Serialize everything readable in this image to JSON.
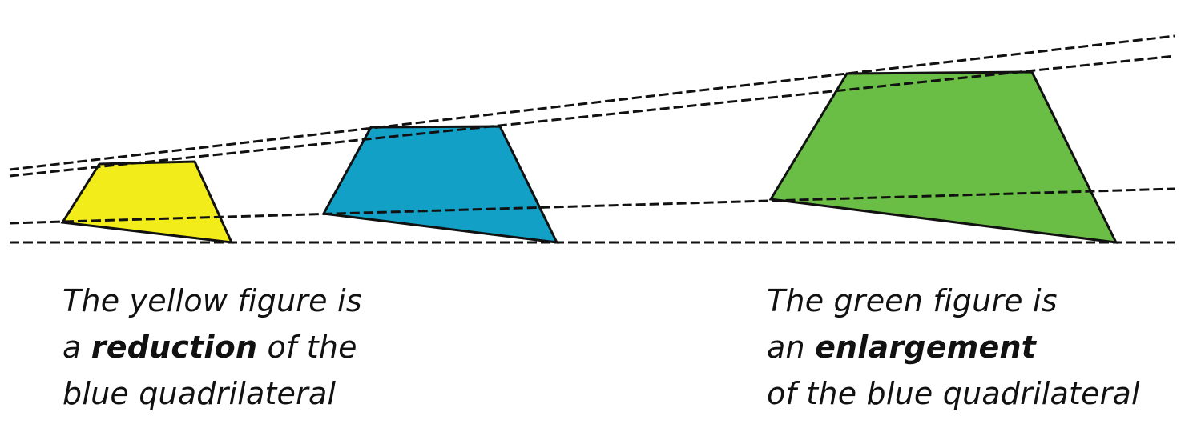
{
  "figures": {
    "yellow": {
      "name": "yellow figure",
      "fill": "#f2ec1b"
    },
    "blue": {
      "name": "blue quadrilateral",
      "fill": "#12a0c6"
    },
    "green": {
      "name": "green figure",
      "fill": "#6abd45"
    }
  },
  "colors": {
    "outline": "#111111",
    "dashed_line": "#111111",
    "background": "#ffffff"
  },
  "captions": {
    "left": {
      "line1": "The yellow figure is",
      "line2_pre": "a ",
      "line2_bold": "reduction",
      "line2_post": " of the",
      "line3": "blue quadrilateral"
    },
    "right": {
      "line1": "The green figure is",
      "line2_pre": "an ",
      "line2_bold": "enlargement",
      "line2_post": "",
      "line3": "of the blue quadrilateral"
    }
  }
}
